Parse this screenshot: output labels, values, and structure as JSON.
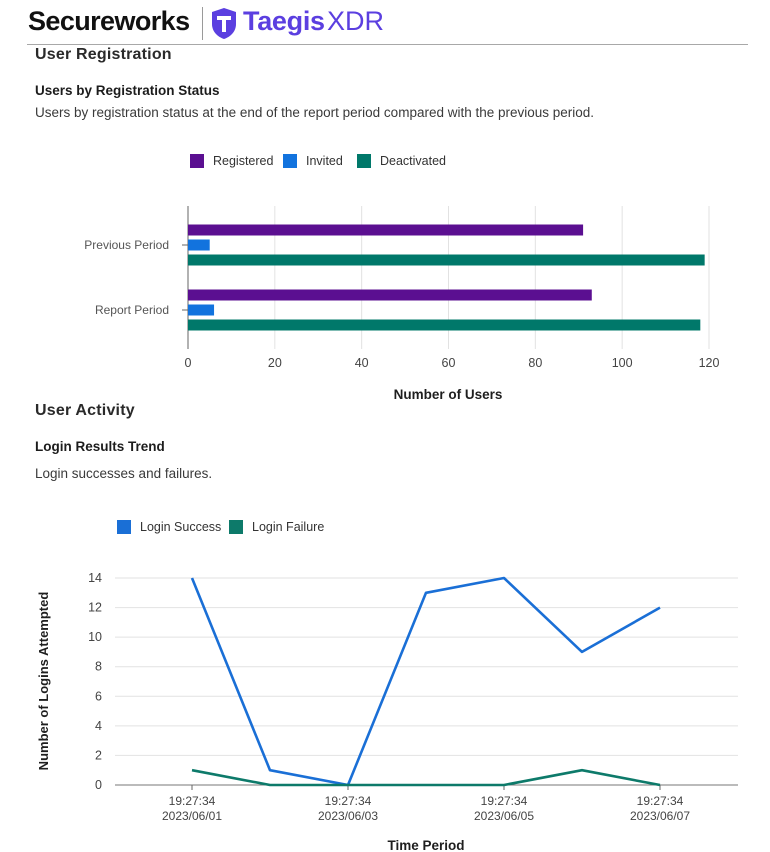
{
  "header": {
    "brand": "Secureworks",
    "product_main": "Taegis",
    "product_suffix": "XDR"
  },
  "sections": {
    "registration": {
      "title": "User Registration",
      "chart_title": "Users by Registration Status",
      "chart_desc": "Users by registration status at the end of the report period compared with the previous period."
    },
    "activity": {
      "title": "User Activity",
      "chart_title": "Login Results Trend",
      "chart_desc": "Login successes and failures."
    }
  },
  "colors": {
    "registered": "#5b0f91",
    "invited": "#1273de",
    "deactivated": "#00786a",
    "login_success": "#1a6fd6",
    "login_failure": "#0d7a6a",
    "grid": "#e2e2e2",
    "axis": "#555555"
  },
  "chart_data": [
    {
      "type": "bar",
      "orientation": "horizontal",
      "categories": [
        "Previous Period",
        "Report Period"
      ],
      "series": [
        {
          "name": "Registered",
          "values": [
            91,
            93
          ]
        },
        {
          "name": "Invited",
          "values": [
            5,
            6
          ]
        },
        {
          "name": "Deactivated",
          "values": [
            119,
            118
          ]
        }
      ],
      "xlabel": "Number of Users",
      "xlim": [
        0,
        120
      ],
      "xticks": [
        0,
        20,
        40,
        60,
        80,
        100,
        120
      ],
      "grid": true,
      "legend": "top"
    },
    {
      "type": "line",
      "x": [
        "2023/06/01",
        "2023/06/02",
        "2023/06/03",
        "2023/06/04",
        "2023/06/05",
        "2023/06/06",
        "2023/06/07"
      ],
      "xtick_labels": [
        {
          "time": "19:27:34",
          "date": "2023/06/01"
        },
        {
          "time": "19:27:34",
          "date": "2023/06/03"
        },
        {
          "time": "19:27:34",
          "date": "2023/06/05"
        },
        {
          "time": "19:27:34",
          "date": "2023/06/07"
        }
      ],
      "series": [
        {
          "name": "Login Success",
          "values": [
            14,
            1,
            0,
            13,
            14,
            9,
            12
          ]
        },
        {
          "name": "Login Failure",
          "values": [
            1,
            0,
            0,
            0,
            0,
            1,
            0
          ]
        }
      ],
      "xlabel": "Time Period",
      "ylabel": "Number of Logins Attempted",
      "ylim": [
        0,
        14
      ],
      "yticks": [
        0,
        2,
        4,
        6,
        8,
        10,
        12,
        14
      ],
      "grid": true,
      "legend": "top"
    }
  ]
}
